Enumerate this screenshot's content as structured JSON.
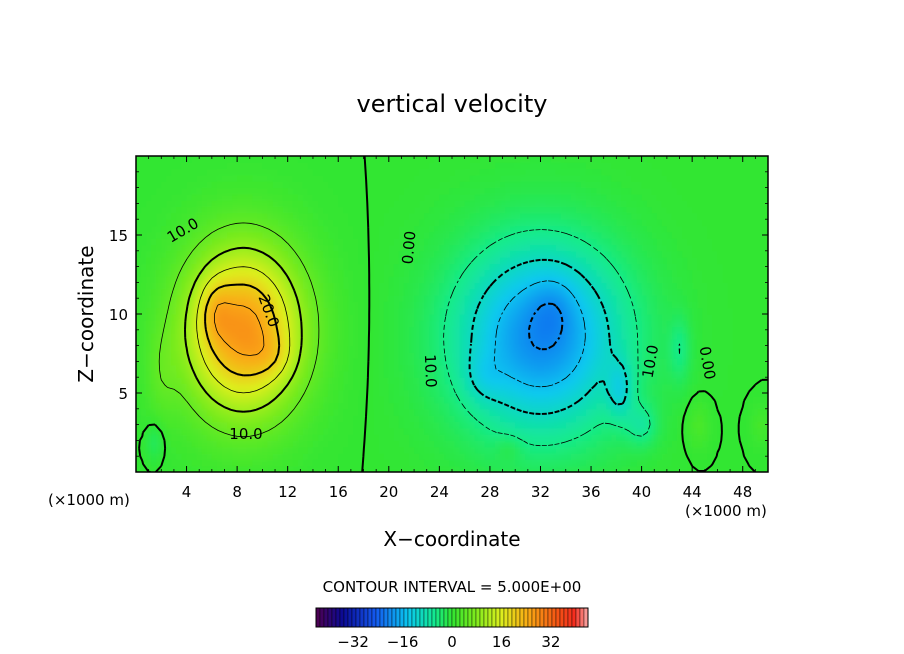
{
  "chart_data": {
    "type": "heatmap",
    "title": "vertical velocity",
    "xlabel": "X−coordinate",
    "ylabel": "Z−coordinate",
    "x_unit_left": "(×1000 m)",
    "x_unit_right": "(×1000 m)",
    "xlim": [
      0,
      50
    ],
    "ylim": [
      0,
      20
    ],
    "x_ticks": [
      4,
      8,
      12,
      16,
      20,
      24,
      28,
      32,
      36,
      40,
      44,
      48
    ],
    "x_tick_labels": [
      "4",
      "8",
      "12",
      "16",
      "20",
      "24",
      "28",
      "32",
      "36",
      "40",
      "44",
      "48"
    ],
    "y_ticks": [
      5,
      10,
      15
    ],
    "y_tick_labels": [
      "5",
      "10",
      "15"
    ],
    "contour_interval_text": "CONTOUR INTERVAL = 5.000E+00",
    "contour_interval": 5.0,
    "colorbar": {
      "min": -44,
      "max": 44,
      "ticks": [
        -32,
        -16,
        0,
        16,
        32
      ],
      "tick_labels": [
        "−32",
        "−16",
        "0",
        "16",
        "32"
      ]
    },
    "contour_labels": [
      {
        "text": "10.0",
        "x": 3.7,
        "z": 15.3,
        "angle": -30
      },
      {
        "text": "20.0",
        "x": 10.5,
        "z": 10.2,
        "angle": 70
      },
      {
        "text": "10.0",
        "x": 8.7,
        "z": 2.4,
        "angle": 0
      },
      {
        "text": "0.00",
        "x": 21.6,
        "z": 14.2,
        "angle": -85
      },
      {
        "text": "10.0",
        "x": 23.3,
        "z": 6.4,
        "angle": 88
      },
      {
        "text": "10.0",
        "x": 40.7,
        "z": 7.0,
        "angle": -80
      },
      {
        "text": "0.00",
        "x": 45.2,
        "z": 6.9,
        "angle": 80
      }
    ],
    "features": [
      {
        "name": "updraft",
        "cx": 8.5,
        "cz": 8.8,
        "peak": 30
      },
      {
        "name": "downdraft",
        "cx": 32.0,
        "cz": 8.5,
        "peak": -22
      }
    ]
  }
}
